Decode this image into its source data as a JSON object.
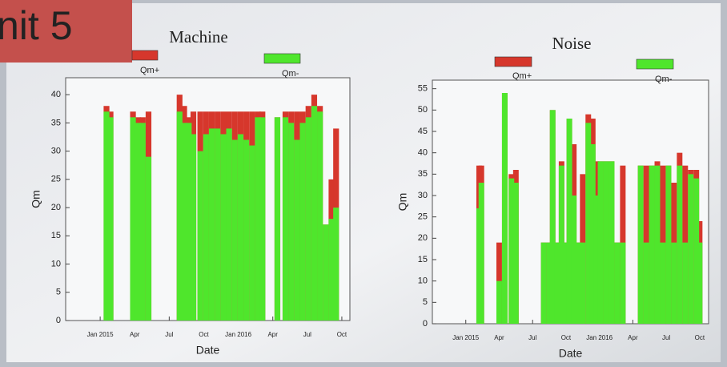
{
  "overlay_label": "nit 5",
  "chart_data": [
    {
      "type": "bar",
      "title": "Machine",
      "xlabel": "Date",
      "ylabel": "Qm",
      "x": [
        0.55,
        0.9,
        2.85,
        3.3,
        3.7,
        4.2,
        6.9,
        7.3,
        7.7,
        8.1,
        8.7,
        9.2,
        9.7,
        10.2,
        10.7,
        11.2,
        11.7,
        12.2,
        12.7,
        13.2,
        13.7,
        14.1,
        15.4,
        16.1,
        16.6,
        17.1,
        17.6,
        18.1,
        18.6,
        19.1,
        19.6,
        20.1,
        20.5
      ],
      "series": [
        {
          "name": "Qm+",
          "color": "#d6372c",
          "values": [
            38,
            37,
            37,
            36,
            36,
            37,
            40,
            38,
            36,
            37,
            37,
            37,
            37,
            37,
            37,
            37,
            37,
            37,
            37,
            37,
            37,
            37,
            36,
            37,
            37,
            37,
            37,
            38,
            40,
            38,
            17,
            25,
            34
          ]
        },
        {
          "name": "Qm-",
          "color": "#4fe62c",
          "values": [
            37,
            36,
            36,
            35,
            35,
            29,
            37,
            35,
            35,
            33,
            30,
            33,
            34,
            34,
            33,
            34,
            32,
            33,
            32,
            31,
            36,
            36,
            36,
            36,
            35,
            32,
            35,
            36,
            38,
            37,
            17,
            18,
            20
          ]
        }
      ],
      "xlim": [
        -3,
        21.7
      ],
      "ylim": [
        0,
        43
      ],
      "xticks": [
        {
          "value": 0,
          "label": "Jan 2015"
        },
        {
          "value": 3,
          "label": "Apr"
        },
        {
          "value": 6,
          "label": "Jul"
        },
        {
          "value": 9,
          "label": "Oct"
        },
        {
          "value": 12,
          "label": "Jan 2016"
        },
        {
          "value": 15,
          "label": "Apr"
        },
        {
          "value": 18,
          "label": "Jul"
        },
        {
          "value": 21,
          "label": "Oct"
        }
      ],
      "yticks": [
        0,
        5,
        10,
        15,
        20,
        25,
        30,
        35,
        40
      ]
    },
    {
      "type": "bar",
      "title": "Noise",
      "xlabel": "Date",
      "ylabel": "Qm",
      "x": [
        1.2,
        1.4,
        3.0,
        3.5,
        4.1,
        4.5,
        7.0,
        7.5,
        7.8,
        8.2,
        8.6,
        9.0,
        9.3,
        9.7,
        10.1,
        10.5,
        11.0,
        11.4,
        11.7,
        12.1,
        12.6,
        13.1,
        13.6,
        14.1,
        15.7,
        16.2,
        16.7,
        17.2,
        17.7,
        18.2,
        18.7,
        19.2,
        19.7,
        20.2,
        20.7,
        21.0
      ],
      "series": [
        {
          "name": "Qm+",
          "color": "#d6372c",
          "values": [
            37,
            37,
            19,
            54,
            35,
            36,
            19,
            19,
            50,
            19,
            38,
            19,
            48,
            42,
            19,
            35,
            49,
            48,
            38,
            38,
            38,
            38,
            19,
            37,
            37,
            37,
            37,
            38,
            37,
            37,
            33,
            40,
            37,
            36,
            36,
            24
          ]
        },
        {
          "name": "Qm-",
          "color": "#4fe62c",
          "values": [
            27,
            33,
            10,
            54,
            34,
            33,
            19,
            19,
            50,
            19,
            37,
            19,
            48,
            30,
            19,
            19,
            47,
            42,
            30,
            38,
            38,
            38,
            19,
            19,
            37,
            19,
            37,
            37,
            19,
            37,
            19,
            37,
            19,
            35,
            34,
            19
          ]
        }
      ],
      "xlim": [
        -3,
        21.8
      ],
      "ylim": [
        0,
        57
      ],
      "xticks": [
        {
          "value": 0,
          "label": "Jan 2015"
        },
        {
          "value": 3,
          "label": "Apr"
        },
        {
          "value": 6,
          "label": "Jul"
        },
        {
          "value": 9,
          "label": "Oct"
        },
        {
          "value": 12,
          "label": "Jan 2016"
        },
        {
          "value": 15,
          "label": "Apr"
        },
        {
          "value": 18,
          "label": "Jul"
        },
        {
          "value": 21,
          "label": "Oct"
        }
      ],
      "yticks": [
        0,
        5,
        10,
        15,
        20,
        25,
        30,
        35,
        40,
        45,
        50,
        55
      ]
    }
  ]
}
